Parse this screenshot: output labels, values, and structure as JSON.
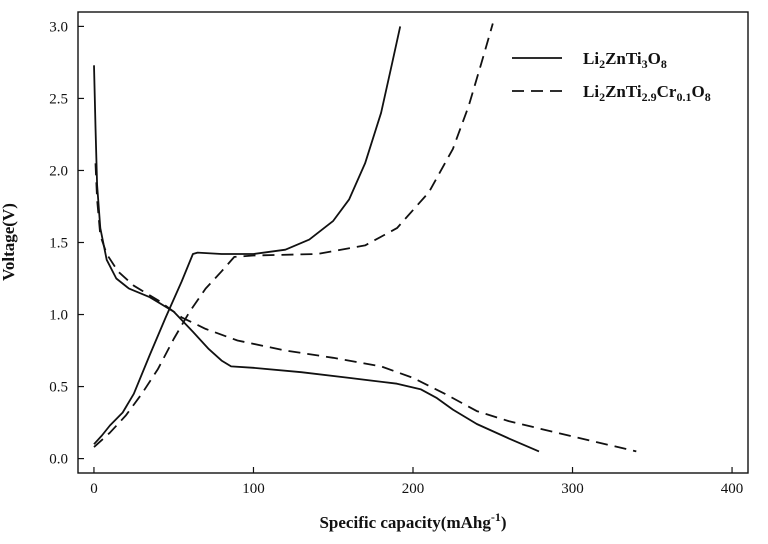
{
  "chart_data": {
    "type": "line",
    "xlabel": "Specific capacity(mAhg",
    "xlabel_sup": "-1",
    "xlabel_close": ")",
    "ylabel": "Voltage(V)",
    "xlim": [
      -10,
      410
    ],
    "ylim": [
      -0.1,
      3.1
    ],
    "xticks": [
      0,
      100,
      200,
      300,
      400
    ],
    "yticks": [
      0.0,
      0.5,
      1.0,
      1.5,
      2.0,
      2.5,
      3.0
    ],
    "xtick_labels": [
      "0",
      "100",
      "200",
      "300",
      "400"
    ],
    "ytick_labels": [
      "0.0",
      "0.5",
      "1.0",
      "1.5",
      "2.0",
      "2.5",
      "3.0"
    ],
    "grid": false,
    "legend_position": "top-right",
    "series": [
      {
        "name": "Li2ZnTi3O8",
        "legend": [
          {
            "t": "Li"
          },
          {
            "t": "2",
            "sub": true
          },
          {
            "t": "ZnTi"
          },
          {
            "t": "3",
            "sub": true
          },
          {
            "t": "O"
          },
          {
            "t": "8",
            "sub": true
          }
        ],
        "style": "solid",
        "color": "#111111",
        "discharge": [
          [
            0,
            2.73
          ],
          [
            1,
            2.3
          ],
          [
            2,
            1.9
          ],
          [
            4,
            1.6
          ],
          [
            8,
            1.38
          ],
          [
            14,
            1.25
          ],
          [
            22,
            1.18
          ],
          [
            35,
            1.12
          ],
          [
            50,
            1.02
          ],
          [
            62,
            0.88
          ],
          [
            72,
            0.76
          ],
          [
            80,
            0.68
          ],
          [
            86,
            0.64
          ],
          [
            100,
            0.63
          ],
          [
            130,
            0.6
          ],
          [
            160,
            0.56
          ],
          [
            190,
            0.52
          ],
          [
            205,
            0.48
          ],
          [
            215,
            0.42
          ],
          [
            225,
            0.34
          ],
          [
            240,
            0.24
          ],
          [
            260,
            0.14
          ],
          [
            279,
            0.05
          ]
        ],
        "charge": [
          [
            0,
            0.1
          ],
          [
            5,
            0.16
          ],
          [
            10,
            0.23
          ],
          [
            18,
            0.32
          ],
          [
            25,
            0.45
          ],
          [
            35,
            0.72
          ],
          [
            45,
            0.98
          ],
          [
            55,
            1.23
          ],
          [
            62,
            1.42
          ],
          [
            65,
            1.43
          ],
          [
            80,
            1.42
          ],
          [
            100,
            1.42
          ],
          [
            120,
            1.45
          ],
          [
            135,
            1.52
          ],
          [
            150,
            1.65
          ],
          [
            160,
            1.8
          ],
          [
            170,
            2.05
          ],
          [
            180,
            2.4
          ],
          [
            187,
            2.75
          ],
          [
            192,
            3.0
          ]
        ]
      },
      {
        "name": "Li2ZnTi2.9Cr0.1O8",
        "legend": [
          {
            "t": "Li"
          },
          {
            "t": "2",
            "sub": true
          },
          {
            "t": "ZnTi"
          },
          {
            "t": "2.9",
            "sub": true
          },
          {
            "t": "Cr"
          },
          {
            "t": "0.1",
            "sub": true
          },
          {
            "t": "O"
          },
          {
            "t": "8",
            "sub": true
          }
        ],
        "style": "dashed",
        "color": "#111111",
        "discharge": [
          [
            1,
            2.05
          ],
          [
            2,
            1.8
          ],
          [
            4,
            1.55
          ],
          [
            8,
            1.42
          ],
          [
            15,
            1.3
          ],
          [
            25,
            1.2
          ],
          [
            40,
            1.1
          ],
          [
            55,
            0.98
          ],
          [
            70,
            0.9
          ],
          [
            90,
            0.82
          ],
          [
            120,
            0.75
          ],
          [
            150,
            0.7
          ],
          [
            180,
            0.64
          ],
          [
            200,
            0.56
          ],
          [
            220,
            0.45
          ],
          [
            240,
            0.33
          ],
          [
            260,
            0.26
          ],
          [
            290,
            0.18
          ],
          [
            340,
            0.05
          ]
        ],
        "charge": [
          [
            0,
            0.08
          ],
          [
            10,
            0.18
          ],
          [
            20,
            0.3
          ],
          [
            30,
            0.45
          ],
          [
            40,
            0.62
          ],
          [
            50,
            0.83
          ],
          [
            60,
            1.02
          ],
          [
            70,
            1.18
          ],
          [
            80,
            1.3
          ],
          [
            88,
            1.4
          ],
          [
            100,
            1.41
          ],
          [
            140,
            1.42
          ],
          [
            170,
            1.48
          ],
          [
            190,
            1.6
          ],
          [
            210,
            1.85
          ],
          [
            225,
            2.15
          ],
          [
            235,
            2.45
          ],
          [
            243,
            2.75
          ],
          [
            250,
            3.02
          ]
        ]
      }
    ]
  }
}
